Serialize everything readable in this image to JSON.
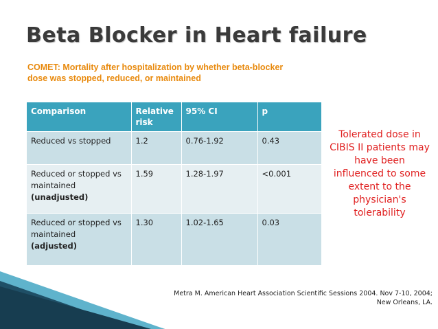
{
  "title": "Beta Blocker in Heart failure",
  "subtitle": "COMET: Mortality after hospitalization by whether beta-blocker dose was stopped, reduced, or maintained",
  "table": {
    "headers": [
      "Comparison",
      "Relative risk",
      "95% CI",
      "p"
    ],
    "rows": [
      {
        "comparison": "Reduced vs stopped",
        "qualifier": "",
        "rr": "1.2",
        "ci": "0.76-1.92",
        "p": "0.43"
      },
      {
        "comparison": "Reduced or stopped vs maintained",
        "qualifier": "(unadjusted)",
        "rr": "1.59",
        "ci": "1.28-1.97",
        "p": "<0.001"
      },
      {
        "comparison": "Reduced or stopped vs maintained",
        "qualifier": "(adjusted)",
        "rr": "1.30",
        "ci": "1.02-1.65",
        "p": "0.03"
      }
    ]
  },
  "side_note": "Tolerated dose in CIBIS II patients may have been influenced to some extent to the physician's tolerability",
  "citation": {
    "line1": "Metra M. American Heart Association Scientific Sessions 2004. Nov 7-10, 2004;",
    "line2": "New Orleans, LA."
  },
  "colors": {
    "title": "#3a3a3a",
    "subtitle": "#e8890c",
    "header_bg": "#3aa3bd",
    "row_dark": "#c9dfe6",
    "row_light": "#e6eff2",
    "side_note": "#e02020",
    "decor_dark": "#1f4f66",
    "decor_light": "#5fb3cc"
  }
}
